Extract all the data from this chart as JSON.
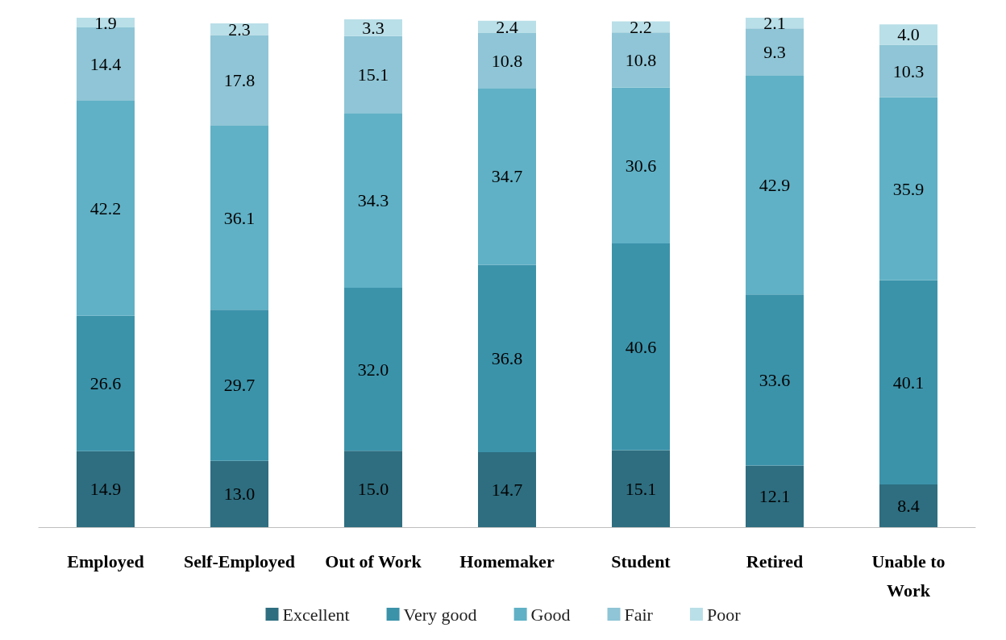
{
  "chart_data": {
    "type": "bar",
    "stacked": true,
    "legend": "bottom",
    "categories": [
      "Employed",
      "Self-Employed",
      "Out of Work",
      "Homemaker",
      "Student",
      "Retired",
      "Unable to Work"
    ],
    "series": [
      {
        "name": "Excellent",
        "color": "#2e6e80",
        "values": [
          14.9,
          13.0,
          15.0,
          14.7,
          15.1,
          12.1,
          8.4
        ],
        "value_labels": [
          "14.9",
          "13.0",
          "15.0",
          "14.7",
          "15.1",
          "12.1",
          "8.4"
        ]
      },
      {
        "name": "Very good",
        "color": "#3b93aa",
        "values": [
          26.6,
          29.7,
          32.0,
          36.8,
          40.6,
          33.6,
          40.1
        ],
        "value_labels": [
          "26.6",
          "29.7",
          "32.0",
          "36.8",
          "40.6",
          "33.6",
          "40.1"
        ]
      },
      {
        "name": "Good",
        "color": "#60b1c6",
        "values": [
          42.2,
          36.1,
          34.3,
          34.7,
          30.6,
          42.9,
          35.9
        ],
        "value_labels": [
          "42.2",
          "36.1",
          "34.3",
          "34.7",
          "30.6",
          "42.9",
          "35.9"
        ]
      },
      {
        "name": "Fair",
        "color": "#8fc5d6",
        "values": [
          14.4,
          17.8,
          15.1,
          10.8,
          10.8,
          9.3,
          10.3
        ],
        "value_labels": [
          "14.4",
          "17.8",
          "15.1",
          "10.8",
          "10.8",
          "9.3",
          "10.3"
        ]
      },
      {
        "name": "Poor",
        "color": "#b9dfe8",
        "values": [
          1.9,
          2.3,
          3.3,
          2.4,
          2.2,
          2.1,
          4.0
        ],
        "value_labels": [
          "1.9",
          "2.3",
          "3.3",
          "2.4",
          "2.2",
          "2.1",
          "4.0"
        ]
      }
    ]
  }
}
